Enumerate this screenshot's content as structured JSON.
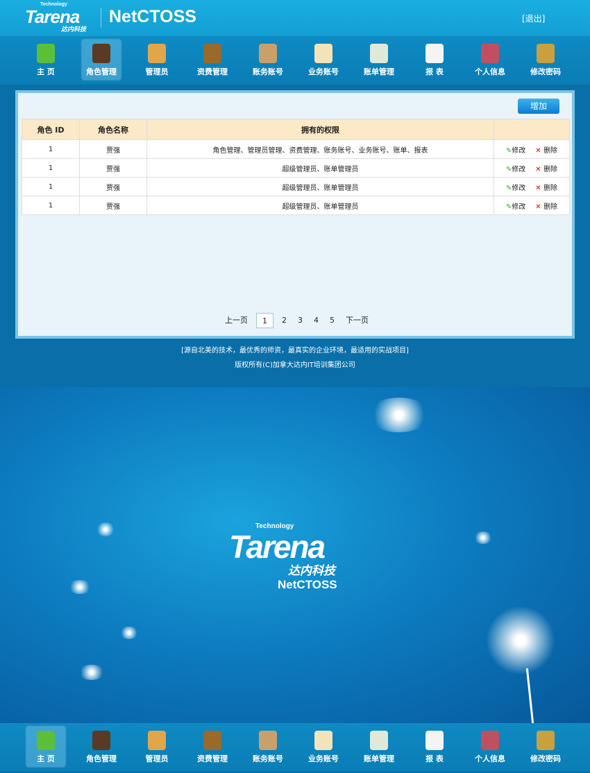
{
  "header": {
    "logo": "Tarena Technology 达内科技",
    "title": "NetCTOSS",
    "logout": "[退出]"
  },
  "nav": {
    "items": [
      {
        "label": "主 页",
        "icon": "home-icon",
        "color": "#5bbf3a"
      },
      {
        "label": "角色管理",
        "icon": "role-icon",
        "color": "#5a3a22"
      },
      {
        "label": "管理员",
        "icon": "admin-icon",
        "color": "#e0a64a"
      },
      {
        "label": "资费管理",
        "icon": "fee-icon",
        "color": "#9a6a2a"
      },
      {
        "label": "账务账号",
        "icon": "account-icon",
        "color": "#c9a06a"
      },
      {
        "label": "业务账号",
        "icon": "service-icon",
        "color": "#f3e3b8"
      },
      {
        "label": "账单管理",
        "icon": "bill-icon",
        "color": "#dfe9d8"
      },
      {
        "label": "报 表",
        "icon": "report-icon",
        "color": "#f4f4f4"
      },
      {
        "label": "个人信息",
        "icon": "user-info-icon",
        "color": "#c05060"
      },
      {
        "label": "修改密码",
        "icon": "lock-icon",
        "color": "#c8a040"
      }
    ],
    "top_active": 1,
    "bottom_active": 0
  },
  "main": {
    "add_label": "增加",
    "columns": [
      "角色 ID",
      "角色名称",
      "拥有的权限",
      ""
    ],
    "rows": [
      {
        "id": "1",
        "name": "贾强",
        "perms": "角色管理、管理员管理、资费管理、账务账号、业务账号、账单、报表"
      },
      {
        "id": "1",
        "name": "贾强",
        "perms": "超级管理员、账单管理员"
      },
      {
        "id": "1",
        "name": "贾强",
        "perms": "超级管理员、账单管理员"
      },
      {
        "id": "1",
        "name": "贾强",
        "perms": "超级管理员、账单管理员"
      }
    ],
    "edit_label": "修改",
    "delete_label": "删除",
    "pager": {
      "prev": "上一页",
      "pages": [
        "1",
        "2",
        "3",
        "4",
        "5"
      ],
      "current": "1",
      "next": "下一页"
    }
  },
  "footer": {
    "line1": "[源自北美的技术，最优秀的师资，最真实的企业环境，最适用的实战项目]",
    "line2": "版权所有(C)加拿大达内IT培训集团公司"
  },
  "splash": {
    "logo": "Technology Tarena 达内科技 NetCTOSS"
  }
}
